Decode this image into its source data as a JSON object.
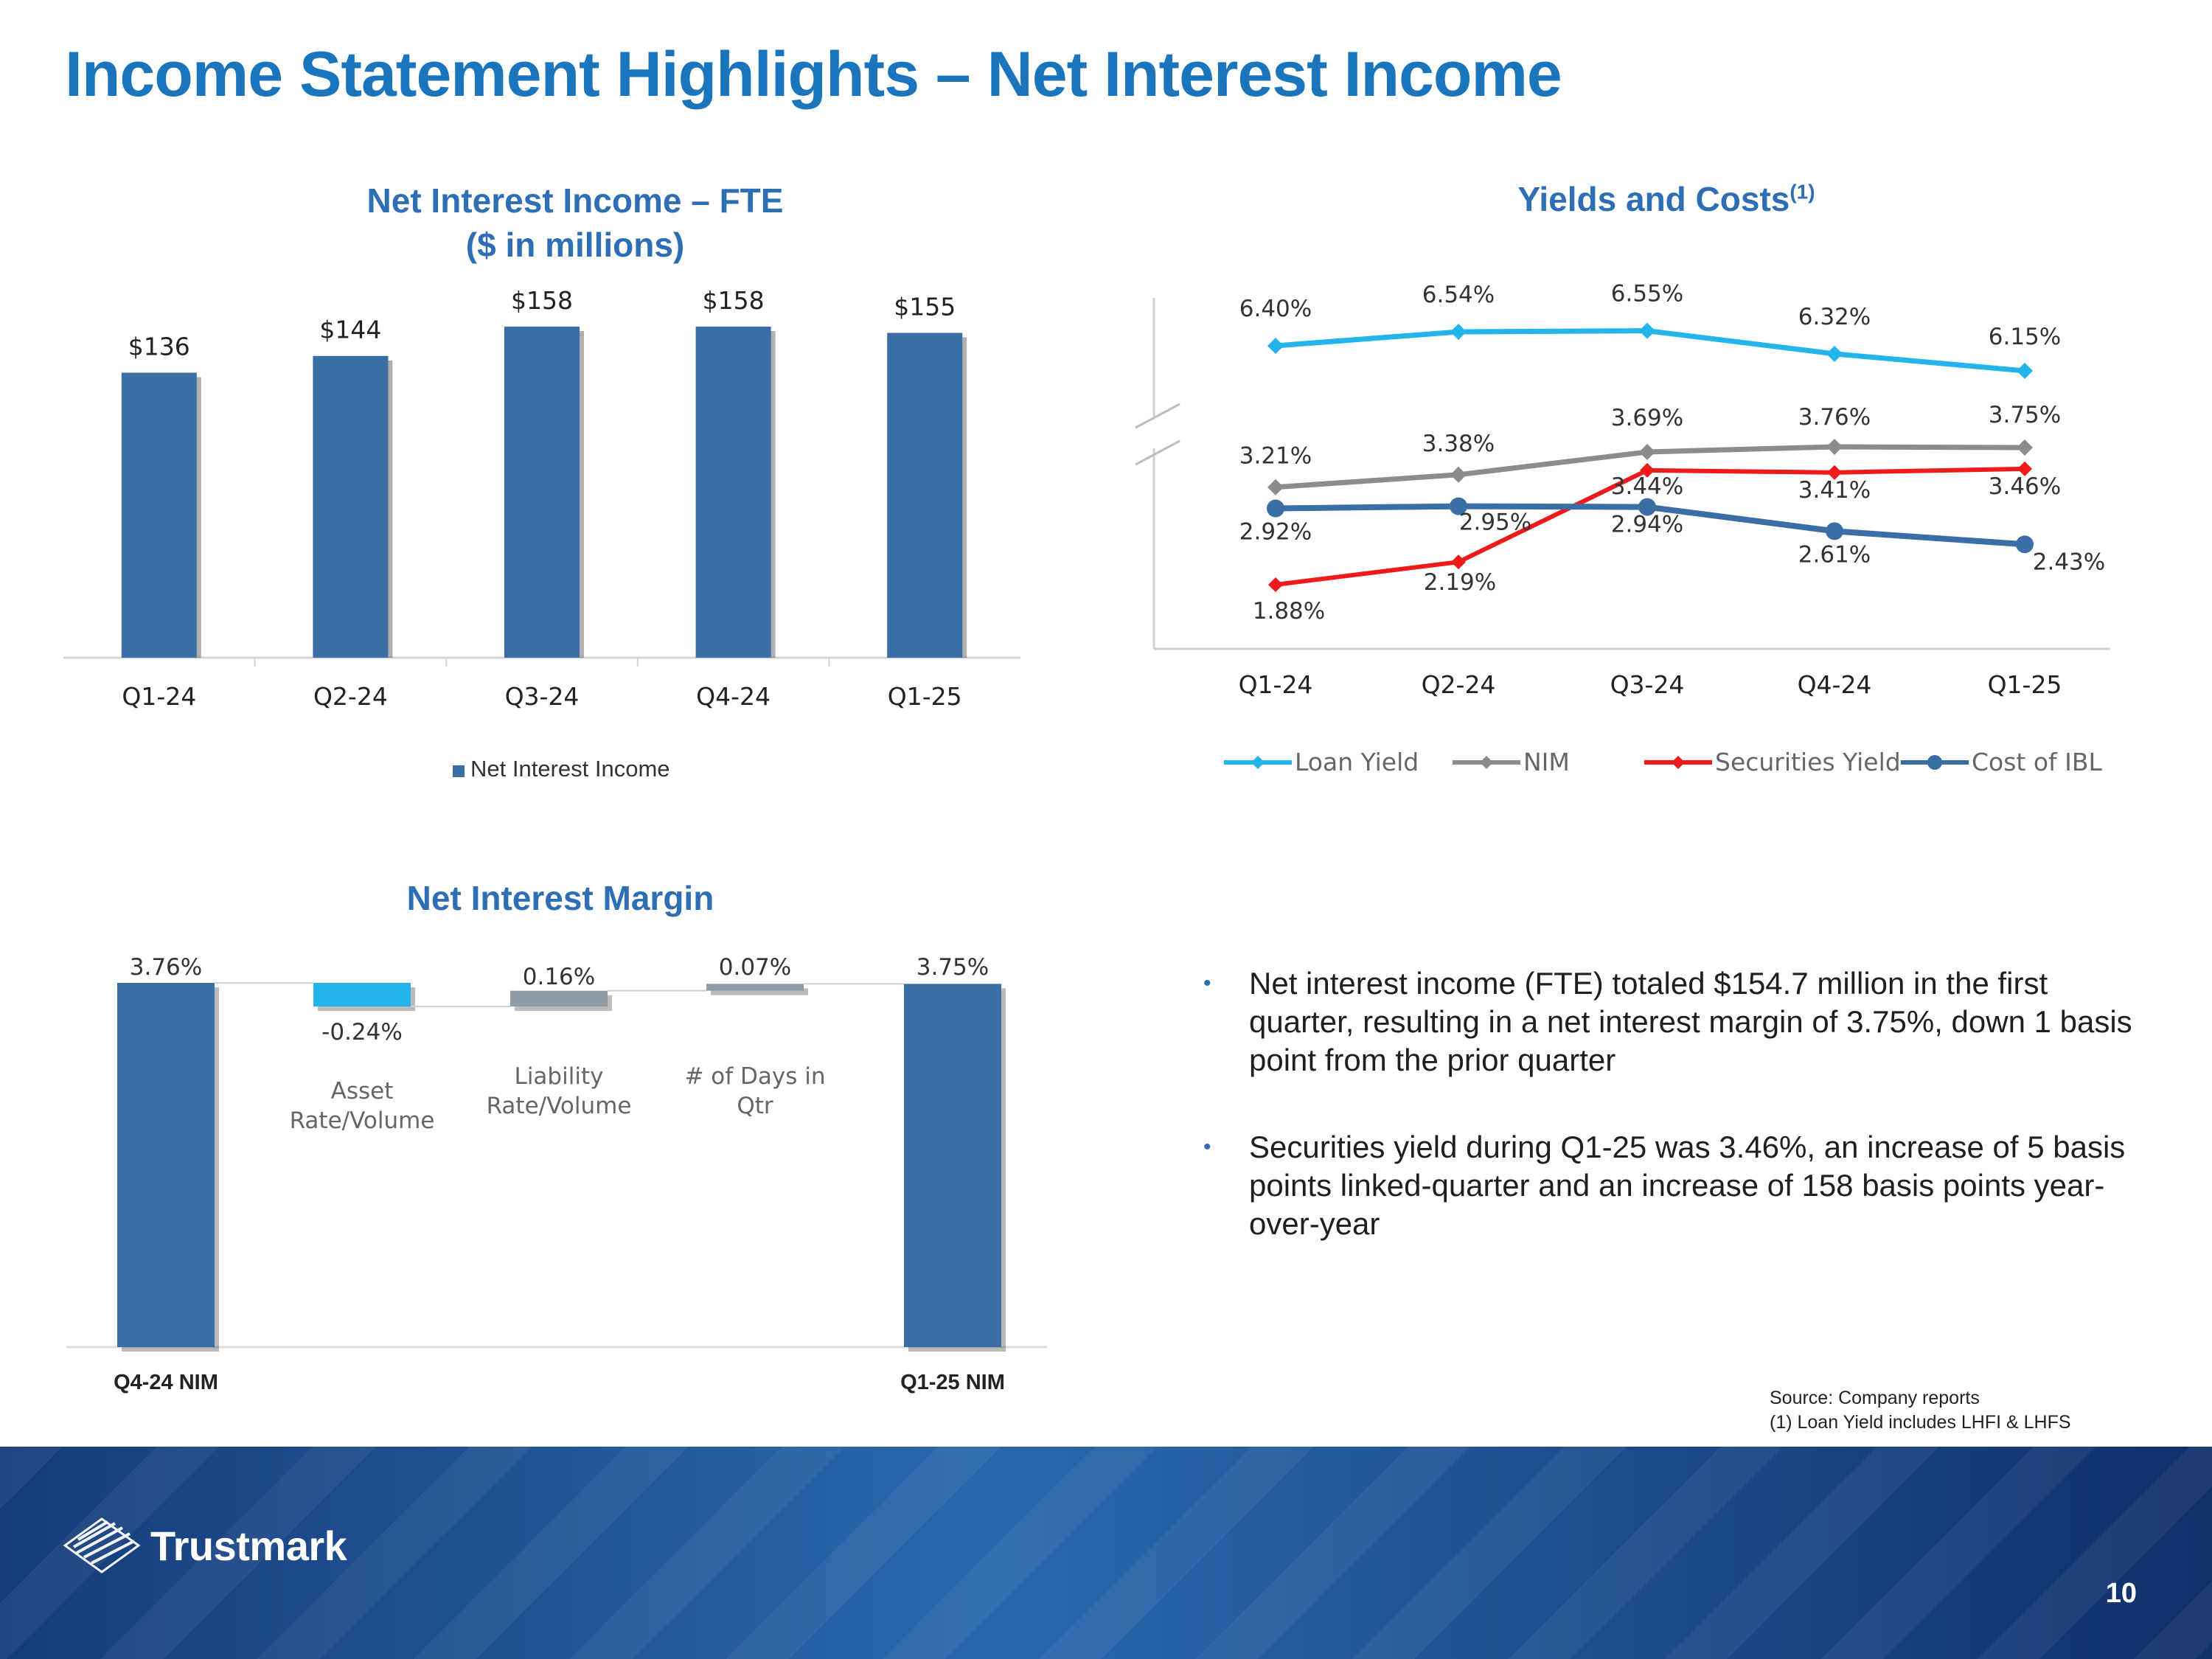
{
  "slide": {
    "title": "Income Statement Highlights – Net Interest Income",
    "page_number": "10"
  },
  "source": {
    "line1": "Source: Company reports",
    "line2": "(1) Loan Yield  includes LHFI & LHFS"
  },
  "logo": {
    "text": "Trustmark"
  },
  "bullets": [
    "Net interest income (FTE) totaled $154.7 million in the first quarter, resulting in a net interest margin of 3.75%, down 1 basis point from the prior quarter",
    "Securities yield during Q1-25 was 3.46%, an increase of 5 basis points linked-quarter and an increase of 158 basis points year-over-year"
  ],
  "colors": {
    "bar": "#3a6ea5",
    "loan_yield": "#22b4ea",
    "nim": "#8c8c8c",
    "securities_yield": "#ef1a1a",
    "cost_of_ibl": "#3a6ea5",
    "waterfall_negative": "#22b4ea",
    "waterfall_positive": "#8d9ca6",
    "title": "#1a75bc"
  },
  "chart_data": [
    {
      "type": "bar",
      "title": "Net Interest Income – FTE",
      "subtitle": "($ in millions)",
      "categories": [
        "Q1-24",
        "Q2-24",
        "Q3-24",
        "Q4-24",
        "Q1-25"
      ],
      "series": [
        {
          "name": "Net Interest Income",
          "values": [
            136,
            144,
            158,
            158,
            155
          ]
        }
      ],
      "data_labels": [
        "$136",
        "$144",
        "$158",
        "$158",
        "$155"
      ],
      "ylim": [
        0,
        190
      ],
      "grid": false,
      "legend": "bottom"
    },
    {
      "type": "line",
      "title": "Yields and Costs",
      "title_superscript": "(1)",
      "categories": [
        "Q1-24",
        "Q2-24",
        "Q3-24",
        "Q4-24",
        "Q1-25"
      ],
      "series": [
        {
          "name": "Loan Yield",
          "values": [
            6.4,
            6.54,
            6.55,
            6.32,
            6.15
          ],
          "labels": [
            "6.40%",
            "6.54%",
            "6.55%",
            "6.32%",
            "6.15%"
          ]
        },
        {
          "name": "NIM",
          "values": [
            3.21,
            3.38,
            3.69,
            3.76,
            3.75
          ],
          "labels": [
            "3.21%",
            "3.38%",
            "3.69%",
            "3.76%",
            "3.75%"
          ]
        },
        {
          "name": "Securities Yield",
          "values": [
            1.88,
            2.19,
            3.44,
            3.41,
            3.46
          ],
          "labels": [
            "1.88%",
            "2.19%",
            "3.44%",
            "3.41%",
            "3.46%"
          ]
        },
        {
          "name": "Cost of IBL",
          "values": [
            2.92,
            2.95,
            2.94,
            2.61,
            2.43
          ],
          "labels": [
            "2.92%",
            "2.95%",
            "2.94%",
            "2.61%",
            "2.43%"
          ]
        }
      ],
      "axis_break": true,
      "grid": false,
      "legend": "bottom"
    },
    {
      "type": "bar",
      "subtype": "waterfall",
      "title": "Net Interest Margin",
      "categories": [
        "Q4-24 NIM",
        "Asset Rate/Volume",
        "Liability Rate/Volume",
        "# of Days in Qtr",
        "Q1-25 NIM"
      ],
      "values": [
        3.76,
        -0.24,
        0.16,
        0.07,
        3.75
      ],
      "labels": [
        "3.76%",
        "-0.24%",
        "0.16%",
        "0.07%",
        "3.75%"
      ],
      "grid": false
    }
  ]
}
